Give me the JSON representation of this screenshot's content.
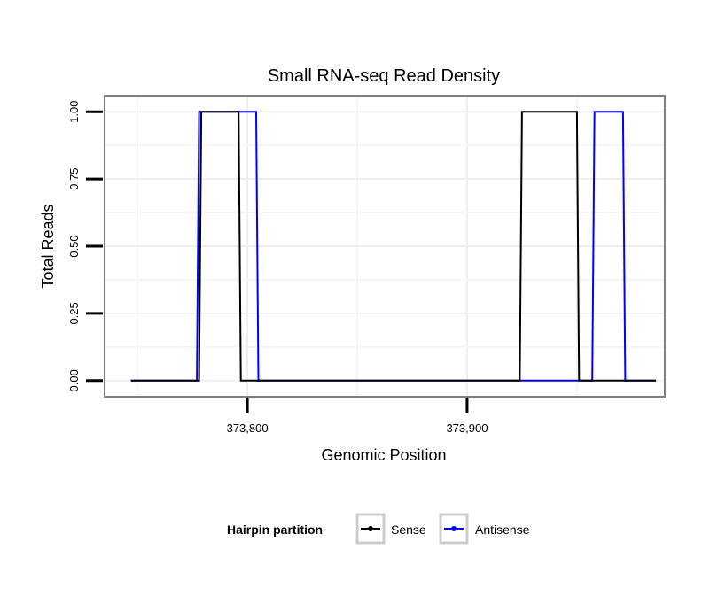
{
  "chart_data": {
    "type": "line",
    "title": "Small RNA-seq Read Density",
    "xlabel": "Genomic Position",
    "ylabel": "Total Reads",
    "xlim": [
      373735,
      373990
    ],
    "ylim": [
      -0.06,
      1.06
    ],
    "x_ticks": [
      373800,
      373900
    ],
    "x_tick_labels": [
      "373,800",
      "373,900"
    ],
    "y_ticks": [
      0,
      0.25,
      0.5,
      0.75,
      1
    ],
    "y_tick_labels": [
      "0.00",
      "0.25",
      "0.50",
      "0.75",
      "1.00"
    ],
    "grid": true,
    "legend": {
      "title": "Hairpin partition",
      "position": "bottom",
      "entries": [
        "Sense",
        "Antisense"
      ]
    },
    "series": [
      {
        "name": "Sense",
        "color": "#000000",
        "x": [
          373747,
          373778,
          373779,
          373796,
          373797,
          373924,
          373925,
          373950,
          373951,
          373986
        ],
        "values": [
          0,
          0,
          1,
          1,
          0,
          0,
          1,
          1,
          0,
          0
        ]
      },
      {
        "name": "Antisense",
        "color": "#0000ff",
        "x": [
          373747,
          373777,
          373778,
          373804,
          373805,
          373957,
          373958,
          373971,
          373972,
          373986
        ],
        "values": [
          0,
          0,
          1,
          1,
          0,
          0,
          1,
          1,
          0,
          0
        ]
      }
    ]
  }
}
